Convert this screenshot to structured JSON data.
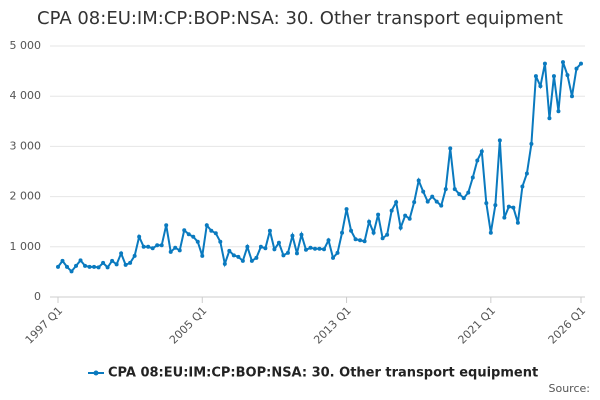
{
  "chart_data": {
    "type": "line",
    "title": "CPA 08:EU:IM:CP:BOP:NSA: 30. Other transport equipment",
    "source": "Source:",
    "categories": [
      "1997 Q1",
      null,
      null,
      null,
      null,
      null,
      null,
      null,
      null,
      null,
      null,
      null,
      null,
      null,
      null,
      null,
      null,
      null,
      null,
      null,
      null,
      null,
      null,
      null,
      null,
      null,
      null,
      null,
      null,
      null,
      null,
      null,
      "2005 Q1",
      null,
      null,
      null,
      null,
      null,
      null,
      null,
      null,
      null,
      null,
      null,
      null,
      null,
      null,
      null,
      null,
      null,
      null,
      null,
      null,
      null,
      null,
      null,
      null,
      null,
      null,
      null,
      null,
      null,
      null,
      null,
      "2013 Q1",
      null,
      null,
      null,
      null,
      null,
      null,
      null,
      null,
      null,
      null,
      null,
      null,
      null,
      null,
      null,
      null,
      null,
      null,
      null,
      null,
      null,
      null,
      null,
      null,
      null,
      null,
      null,
      null,
      null,
      null,
      null,
      "2021 Q1",
      null,
      null,
      null,
      null,
      null,
      null,
      null,
      null,
      null,
      null,
      null,
      null,
      null,
      null,
      null,
      null,
      null,
      null,
      null,
      "2026 Q1"
    ],
    "series": [
      {
        "name": "CPA 08:EU:IM:CP:BOP:NSA: 30. Other transport equipment",
        "color": "#0a7abf",
        "values": [
          600,
          720,
          600,
          510,
          620,
          730,
          620,
          600,
          600,
          590,
          680,
          590,
          720,
          650,
          870,
          640,
          680,
          820,
          1200,
          1000,
          1000,
          970,
          1030,
          1030,
          1430,
          900,
          980,
          930,
          1330,
          1250,
          1200,
          1100,
          820,
          1430,
          1320,
          1270,
          1100,
          660,
          920,
          830,
          800,
          720,
          1000,
          720,
          780,
          1000,
          970,
          1320,
          950,
          1080,
          830,
          880,
          1220,
          870,
          1240,
          940,
          980,
          960,
          960,
          950,
          1130,
          780,
          880,
          1280,
          1750,
          1320,
          1150,
          1130,
          1110,
          1500,
          1280,
          1640,
          1170,
          1240,
          1720,
          1890,
          1380,
          1620,
          1560,
          1890,
          2320,
          2100,
          1900,
          2000,
          1900,
          1820,
          2150,
          2960,
          2150,
          2050,
          1970,
          2080,
          2380,
          2720,
          2900,
          1870,
          1280,
          1830,
          3120,
          1580,
          1800,
          1780,
          1480,
          2200,
          2460,
          3050,
          4400,
          4200,
          4650,
          3560,
          4400,
          3700,
          4680,
          4420,
          4000,
          4550,
          4650
        ]
      }
    ],
    "ylim": [
      0,
      5000
    ],
    "yticks": [
      0,
      {
        "value": 1000,
        "label": "1 000"
      },
      {
        "value": 2000,
        "label": "2 000"
      },
      {
        "value": 3000,
        "label": "3 000"
      },
      {
        "value": 4000,
        "label": "4 000"
      },
      {
        "value": 5000,
        "label": "5 000"
      }
    ],
    "grid": true
  }
}
